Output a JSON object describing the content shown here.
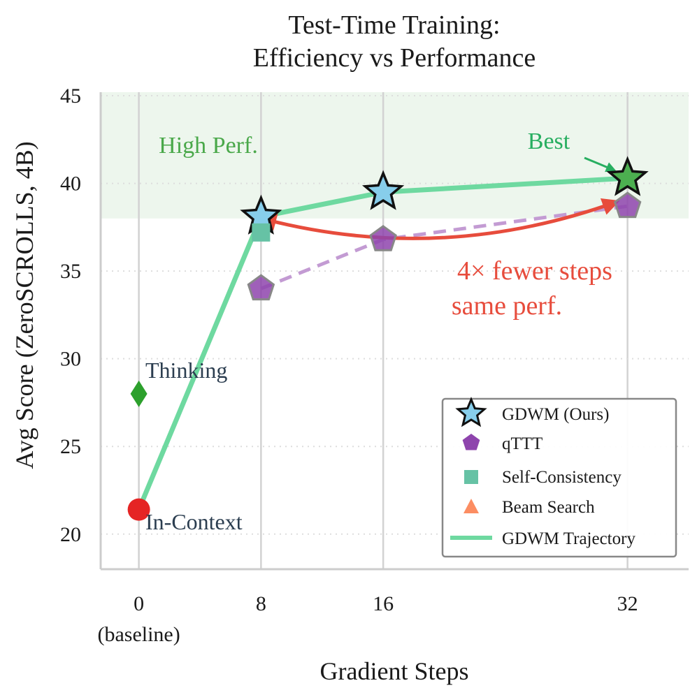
{
  "chart_data": {
    "type": "scatter",
    "title": [
      "Test-Time Training:",
      "Efficiency vs Performance"
    ],
    "xlabel": "Gradient Steps",
    "ylabel": "Avg Score (ZeroSCROLLS, 4B)",
    "xlim": [
      -2.5,
      36
    ],
    "ylim": [
      18,
      45.2
    ],
    "xticks": [
      {
        "value": 0,
        "label": "0",
        "sublabel": "(baseline)"
      },
      {
        "value": 8,
        "label": "8"
      },
      {
        "value": 16,
        "label": "16"
      },
      {
        "value": 32,
        "label": "32"
      }
    ],
    "yticks": [
      20,
      25,
      30,
      35,
      40,
      45
    ],
    "grid": true,
    "high_perf_region": {
      "y_from": 38,
      "y_to": 45.2,
      "label": "High Perf.",
      "color": "#4aa84a"
    },
    "series": [
      {
        "name": "GDWM Trajectory",
        "kind": "line",
        "color": "#6ed9a0",
        "x": [
          0,
          8,
          16,
          32
        ],
        "y": [
          21.4,
          38.1,
          39.5,
          40.3
        ]
      },
      {
        "name": "qTTT trend",
        "kind": "dashed",
        "color": "#c39bd3",
        "x": [
          8,
          16,
          32
        ],
        "y": [
          34.0,
          36.8,
          38.7
        ]
      },
      {
        "name": "GDWM (Ours)",
        "kind": "star",
        "color": "#87ceeb",
        "x": [
          8,
          16
        ],
        "y": [
          38.1,
          39.5
        ]
      },
      {
        "name": "GDWM best",
        "kind": "star",
        "color": "#4caf50",
        "x": [
          32
        ],
        "y": [
          40.3
        ]
      },
      {
        "name": "qTTT",
        "kind": "pentagon",
        "color": "#8e44ad",
        "x": [
          8,
          16,
          32
        ],
        "y": [
          34.0,
          36.8,
          38.7
        ]
      },
      {
        "name": "Self-Consistency",
        "kind": "square",
        "color": "#66c2a5",
        "x": [
          8
        ],
        "y": [
          37.2
        ]
      },
      {
        "name": "Thinking",
        "kind": "diamond",
        "color": "#2ca02c",
        "x": [
          0
        ],
        "y": [
          28.0
        ]
      },
      {
        "name": "In-Context",
        "kind": "circle",
        "color": "#e52424",
        "x": [
          0
        ],
        "y": [
          21.4
        ]
      }
    ],
    "annotations": [
      {
        "text": "Thinking",
        "color": "#2c3e50"
      },
      {
        "text": "In-Context",
        "color": "#2c3e50"
      },
      {
        "text": "Best",
        "color": "#27ae60"
      },
      {
        "text": "4× fewer steps",
        "color": "#e74c3c"
      },
      {
        "text": "same perf.",
        "color": "#e74c3c"
      }
    ],
    "legend": {
      "position": "lower-right",
      "entries": [
        {
          "label": "GDWM (Ours)",
          "marker": "star",
          "color": "#87ceeb"
        },
        {
          "label": "qTTT",
          "marker": "pentagon",
          "color": "#8e44ad"
        },
        {
          "label": "Self-Consistency",
          "marker": "square",
          "color": "#66c2a5"
        },
        {
          "label": "Beam Search",
          "marker": "triangle",
          "color": "#fc8d62"
        },
        {
          "label": "GDWM Trajectory",
          "marker": "line",
          "color": "#6ed9a0"
        }
      ]
    }
  }
}
